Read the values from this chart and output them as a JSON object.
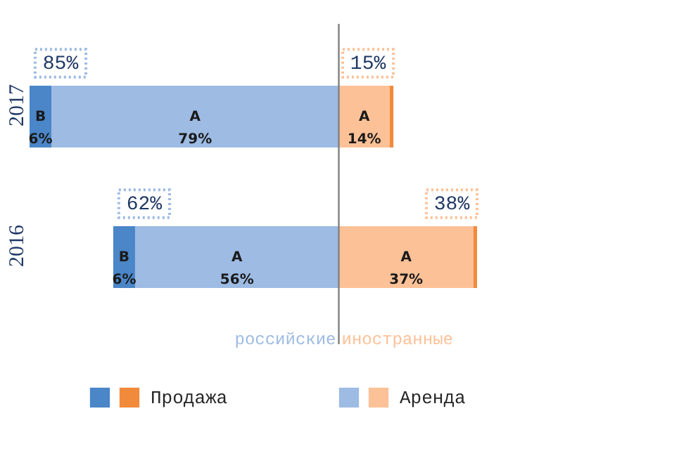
{
  "chart_data": {
    "type": "bar",
    "orientation": "horizontal",
    "stacked": true,
    "legend": "bottom",
    "categories": [
      "2017",
      "2016"
    ],
    "series": [
      {
        "color": "#9dbbe3",
        "values": [
          -79,
          -56
        ],
        "value_labels": [
          "А\n79%",
          "А\n56%"
        ]
      },
      {
        "color": "#4a86c8",
        "values": [
          -6,
          -6
        ],
        "value_labels": [
          "В\n6%",
          "В\n6%"
        ]
      },
      {
        "name": "Аренда",
        "color": "#fdc197",
        "values": [
          14,
          37
        ],
        "value_labels": [
          "А\n14%",
          "А\n37%"
        ]
      },
      {
        "name": "Продажа",
        "color": "#f28a3c",
        "values": [
          1,
          1
        ],
        "value_labels": [
          null,
          null
        ]
      }
    ],
    "ref_lines": [
      {
        "axis": "x",
        "value": 0,
        "color": "#808080"
      }
    ],
    "annotations": [
      {
        "text": "85%",
        "x": -85,
        "y": "2017"
      },
      {
        "text": "15%",
        "x": 15,
        "y": "2017"
      },
      {
        "text": "62%",
        "x": -62,
        "y": "2016"
      },
      {
        "text": "38%",
        "x": 38,
        "y": "2016"
      },
      "российские",
      "иностранные"
    ]
  }
}
